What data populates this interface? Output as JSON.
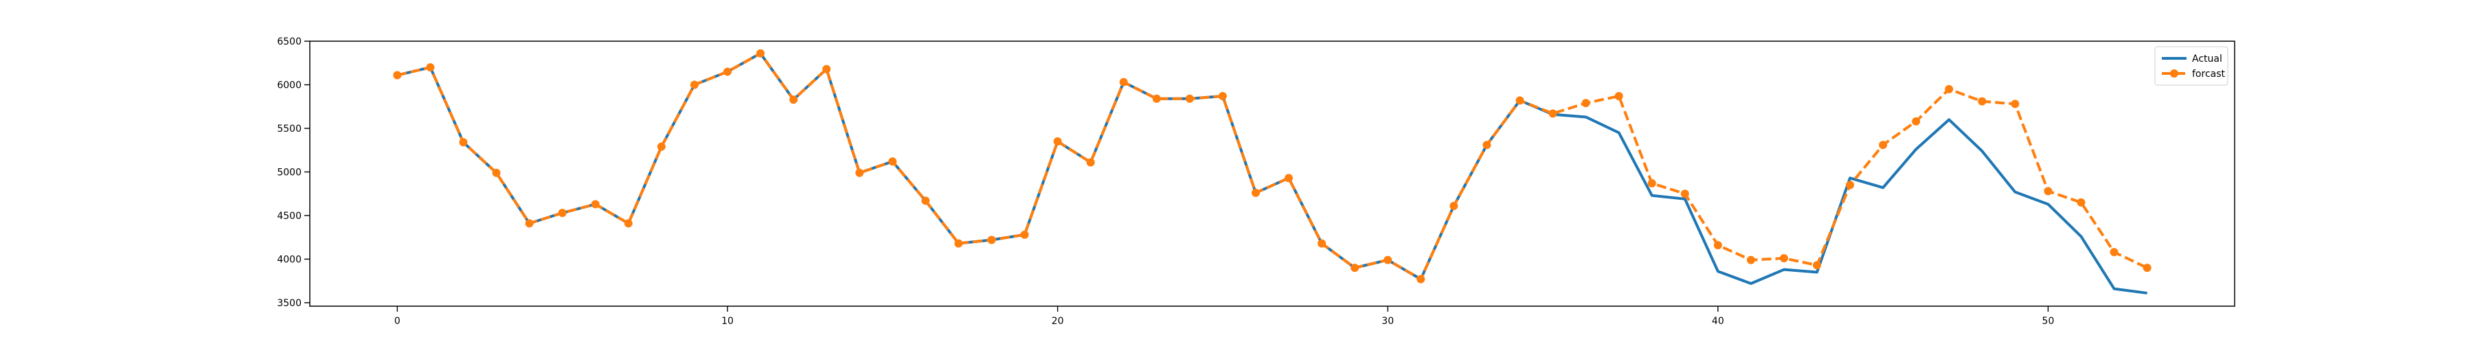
{
  "chart_data": {
    "type": "line",
    "title": "",
    "xlabel": "",
    "ylabel": "",
    "xlim": [
      -2.65,
      55.65
    ],
    "ylim": [
      3460,
      6500
    ],
    "xticks": [
      0,
      10,
      20,
      30,
      40,
      50
    ],
    "xtick_labels": [
      "0",
      "10",
      "20",
      "30",
      "40",
      "50"
    ],
    "yticks": [
      3500,
      4000,
      4500,
      5000,
      5500,
      6000,
      6500
    ],
    "ytick_labels": [
      "3500",
      "4000",
      "4500",
      "5000",
      "5500",
      "6000",
      "6500"
    ],
    "grid": false,
    "legend_position": "top-right",
    "series": [
      {
        "name": "Actual",
        "color": "#1f77b4",
        "style": "solid",
        "marker": "none",
        "x": [
          0,
          1,
          2,
          3,
          4,
          5,
          6,
          7,
          8,
          9,
          10,
          11,
          12,
          13,
          14,
          15,
          16,
          17,
          18,
          19,
          20,
          21,
          22,
          23,
          24,
          25,
          26,
          27,
          28,
          29,
          30,
          31,
          32,
          33,
          34,
          35,
          36,
          37,
          38,
          39,
          40,
          41,
          42,
          43,
          44,
          45,
          46,
          47,
          48,
          49,
          50,
          51,
          52,
          53
        ],
        "values": [
          6110,
          6200,
          5340,
          4990,
          4410,
          4530,
          4630,
          4410,
          5290,
          6000,
          6150,
          6360,
          5830,
          6180,
          4990,
          5120,
          4670,
          4180,
          4220,
          4280,
          5350,
          5110,
          6030,
          5840,
          5840,
          5870,
          4760,
          4930,
          4180,
          3900,
          3990,
          3770,
          4610,
          5310,
          5820,
          5660,
          5630,
          5450,
          4730,
          4690,
          3860,
          3720,
          3880,
          3850,
          4930,
          4820,
          5260,
          5600,
          5240,
          4770,
          4630,
          4260,
          3660,
          3610
        ]
      },
      {
        "name": "forcast",
        "color": "#ff7f0e",
        "style": "dashed",
        "marker": "circle",
        "x": [
          0,
          1,
          2,
          3,
          4,
          5,
          6,
          7,
          8,
          9,
          10,
          11,
          12,
          13,
          14,
          15,
          16,
          17,
          18,
          19,
          20,
          21,
          22,
          23,
          24,
          25,
          26,
          27,
          28,
          29,
          30,
          31,
          32,
          33,
          34,
          35,
          36,
          37,
          38,
          39,
          40,
          41,
          42,
          43,
          44,
          45,
          46,
          47,
          48,
          49,
          50,
          51,
          52,
          53
        ],
        "values": [
          6110,
          6200,
          5340,
          4990,
          4410,
          4530,
          4630,
          4410,
          5290,
          6000,
          6150,
          6360,
          5830,
          6180,
          4990,
          5120,
          4670,
          4180,
          4220,
          4280,
          5350,
          5110,
          6030,
          5840,
          5840,
          5870,
          4760,
          4930,
          4180,
          3900,
          3990,
          3770,
          4610,
          5310,
          5820,
          5670,
          5790,
          5870,
          4870,
          4750,
          4160,
          3990,
          4010,
          3930,
          4850,
          5310,
          5580,
          5950,
          5810,
          5780,
          4780,
          4650,
          4080,
          3900
        ]
      }
    ]
  }
}
